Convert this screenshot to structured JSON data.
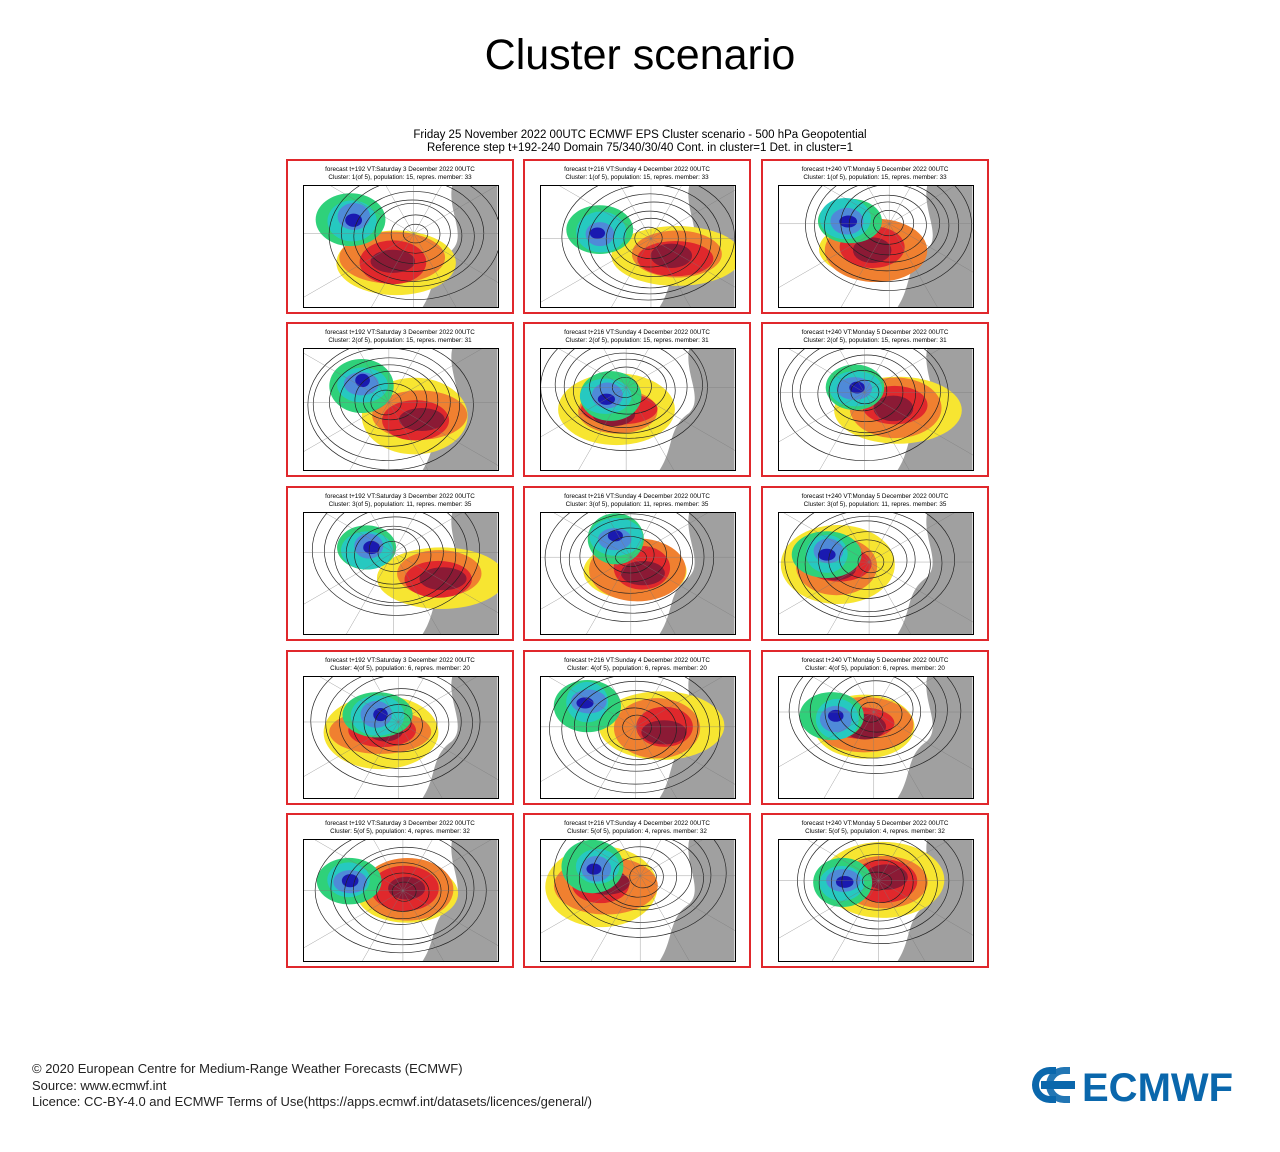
{
  "page_title": "Cluster scenario",
  "header": {
    "line1": "Friday 25 November 2022 00UTC ECMWF EPS Cluster scenario - 500 hPa Geopotential",
    "line2": "Reference step t+192-240 Domain 75/340/30/40 Cont. in cluster=1 Det. in cluster=1"
  },
  "grid": {
    "columns": [
      {
        "forecast": "forecast t+192 VT:Saturday 3 December 2022 00UTC"
      },
      {
        "forecast": "forecast t+216 VT:Sunday 4 December 2022 00UTC"
      },
      {
        "forecast": "forecast t+240 VT:Monday 5 December 2022 00UTC"
      }
    ],
    "rows": [
      {
        "cluster": "Cluster: 1(of 5), population: 15, repres. member: 33"
      },
      {
        "cluster": "Cluster: 2(of 5), population: 15, repres. member: 31"
      },
      {
        "cluster": "Cluster: 3(of 5), population: 11, repres. member: 35"
      },
      {
        "cluster": "Cluster: 4(of 5), population: 6, repres. member: 20"
      },
      {
        "cluster": "Cluster: 5(of 5), population: 4, repres. member: 32"
      }
    ]
  },
  "colors": {
    "panel_border": "#e0282c",
    "anomaly_positive_strong": "#8b1a35",
    "anomaly_positive": "#e0282c",
    "anomaly_positive_weak": "#f08030",
    "anomaly_positive_faint": "#f7e531",
    "anomaly_negative_faint": "#2fd17a",
    "anomaly_negative": "#26c9c0",
    "anomaly_negative_strong": "#4f8ad8",
    "anomaly_negative_extreme": "#1a1ab0",
    "land": "#a0a0a0",
    "logo_blue": "#0a67ac"
  },
  "footer": {
    "copyright": "© 2020 European Centre for Medium-Range Weather Forecasts (ECMWF)",
    "source": "Source: www.ecmwf.int",
    "licence": "Licence: CC-BY-4.0 and ECMWF Terms of Use(https://apps.ecmwf.int/datasets/licences/general/)"
  },
  "logo": {
    "text": "ECMWF"
  }
}
